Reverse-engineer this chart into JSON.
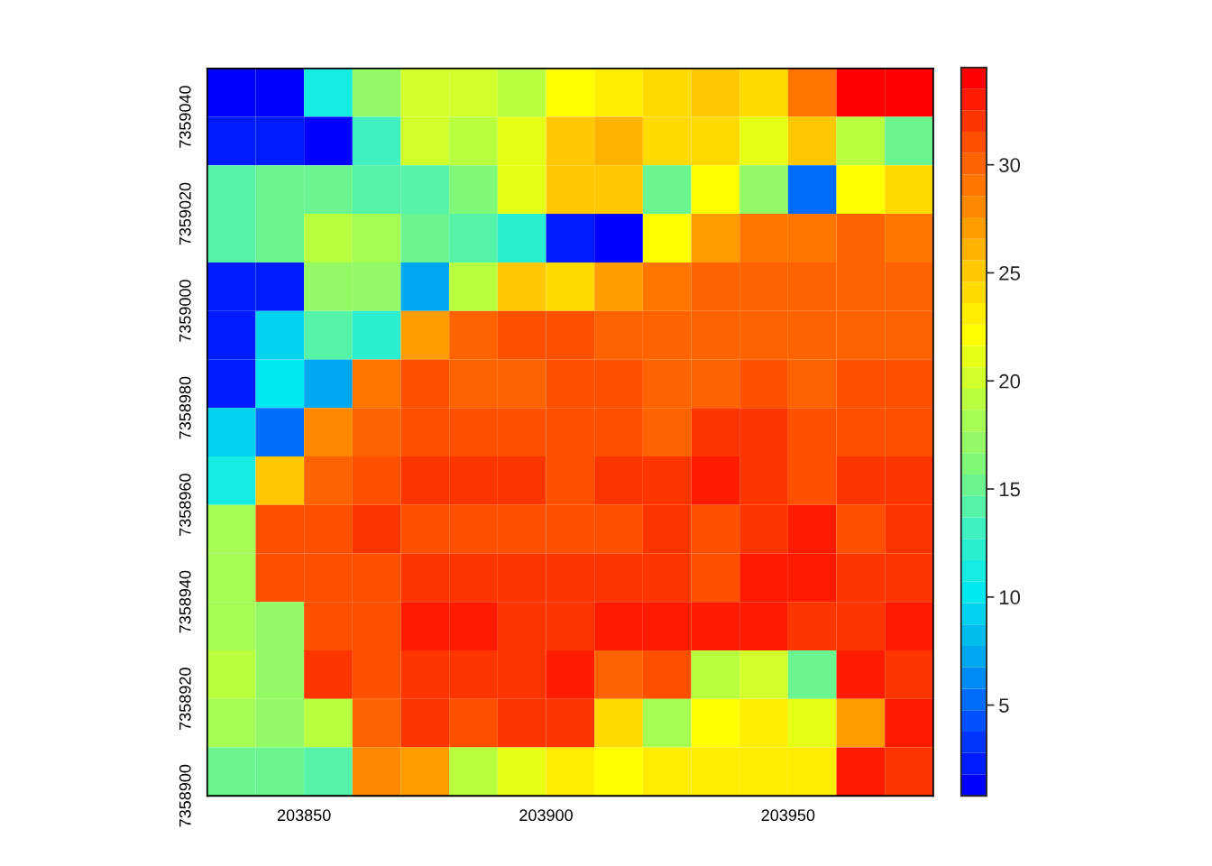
{
  "chart_data": {
    "type": "heatmap",
    "x": [
      203835,
      203845,
      203855,
      203865,
      203875,
      203885,
      203895,
      203905,
      203915,
      203925,
      203935,
      203945,
      203955,
      203965,
      203975
    ],
    "y": [
      7359045,
      7359035,
      7359025,
      7359015,
      7359005,
      7358995,
      7358985,
      7358975,
      7358965,
      7358955,
      7358945,
      7358935,
      7358925,
      7358915,
      7358905
    ],
    "cells": [
      [
        1,
        1,
        11,
        17,
        20.5,
        20.5,
        19,
        22,
        23,
        24,
        25,
        24,
        29,
        34.5,
        34.5
      ],
      [
        2,
        2,
        1,
        13,
        20.5,
        19.5,
        21,
        25.5,
        26,
        24.5,
        24.5,
        21,
        25,
        19,
        15.5
      ],
      [
        14.5,
        15,
        15,
        14,
        14,
        16.5,
        21,
        25.5,
        25.5,
        15.5,
        22,
        17,
        5.5,
        22,
        24
      ],
      [
        14.5,
        15.5,
        19,
        18,
        15.5,
        14,
        12,
        2,
        1,
        22,
        27,
        29,
        29.5,
        30.5,
        29
      ],
      [
        2,
        2,
        17,
        17,
        7.5,
        19.5,
        25,
        24,
        27.5,
        29,
        30.5,
        30.5,
        30.5,
        30.5,
        30.5
      ],
      [
        2,
        9,
        14,
        12,
        27.5,
        30.5,
        31,
        31,
        30.5,
        30.5,
        30.5,
        30.5,
        30.5,
        30.5,
        30.5
      ],
      [
        2,
        10.5,
        7.5,
        29.5,
        31,
        30.5,
        30.5,
        31,
        31,
        30.5,
        30.5,
        31,
        30.5,
        31,
        31
      ],
      [
        9.5,
        5,
        28,
        30.5,
        31,
        31,
        31,
        31,
        31,
        30.5,
        32,
        32,
        31,
        31,
        31
      ],
      [
        11,
        25,
        30.5,
        31,
        32,
        32,
        32,
        31,
        32,
        32,
        33,
        32,
        31,
        32,
        32
      ],
      [
        18,
        31,
        31,
        32,
        31,
        31,
        31,
        31,
        31,
        32,
        31,
        32,
        33,
        31,
        32
      ],
      [
        18,
        31,
        31,
        31,
        32,
        32,
        32,
        32,
        32,
        32,
        31,
        33,
        33,
        32,
        32
      ],
      [
        18,
        17,
        31,
        31,
        33,
        33,
        32,
        32,
        33,
        33,
        33,
        33,
        32,
        32,
        33
      ],
      [
        19,
        17,
        32,
        31,
        32,
        32,
        32,
        33,
        30.5,
        31,
        19,
        20.5,
        15.5,
        33.5,
        32
      ],
      [
        18,
        17,
        19,
        30.5,
        32,
        31,
        32,
        32,
        24,
        18,
        22,
        23,
        21,
        27.5,
        33
      ],
      [
        15,
        15,
        14,
        28,
        27.5,
        19.5,
        21,
        23,
        22.5,
        23,
        23,
        23,
        23,
        33,
        32
      ]
    ],
    "xlim": [
      203830,
      203980
    ],
    "ylim": [
      7358900,
      7359050
    ],
    "xticks": [
      203850,
      203900,
      203950
    ],
    "yticks": [
      7358900,
      7358920,
      7358940,
      7358960,
      7358980,
      7359000,
      7359020,
      7359040
    ],
    "clim": [
      0.8,
      34.5
    ],
    "cticks": [
      5,
      10,
      15,
      20,
      25,
      30
    ]
  }
}
